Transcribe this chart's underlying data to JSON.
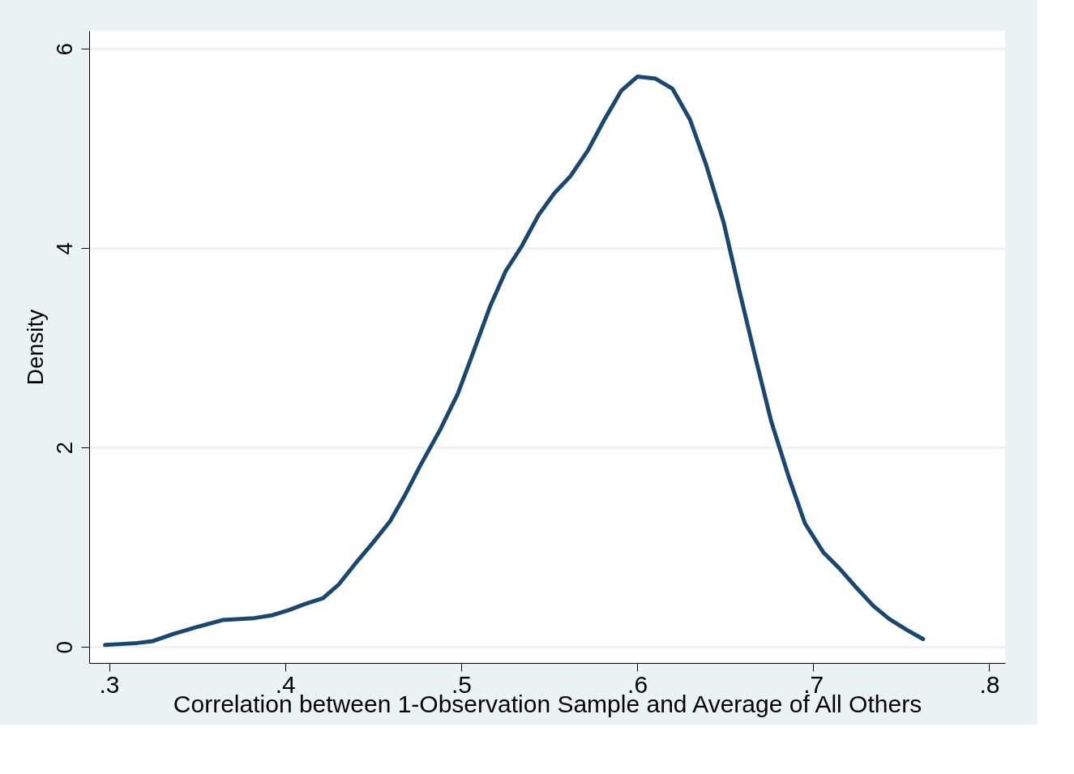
{
  "chart_data": {
    "type": "line",
    "xlabel": "Correlation between 1-Observation Sample and Average of All Others",
    "ylabel": "Density",
    "xlim": [
      0.2887,
      0.809
    ],
    "ylim": [
      -0.16,
      6.18
    ],
    "xticks": [
      {
        "value": 0.3,
        "label": ".3"
      },
      {
        "value": 0.4,
        "label": ".4"
      },
      {
        "value": 0.5,
        "label": ".5"
      },
      {
        "value": 0.6,
        "label": ".6"
      },
      {
        "value": 0.7,
        "label": ".7"
      },
      {
        "value": 0.8,
        "label": ".8"
      }
    ],
    "yticks": [
      0,
      2,
      4,
      6
    ],
    "grid": "y",
    "marker": "none",
    "line_style": "solid",
    "x": [
      0.2977,
      0.3068,
      0.3159,
      0.325,
      0.3363,
      0.3499,
      0.3644,
      0.3825,
      0.393,
      0.402,
      0.4111,
      0.4215,
      0.4306,
      0.4396,
      0.4496,
      0.4596,
      0.4677,
      0.4768,
      0.4881,
      0.4981,
      0.5072,
      0.5163,
      0.5253,
      0.5344,
      0.5439,
      0.5529,
      0.562,
      0.572,
      0.5811,
      0.591,
      0.6001,
      0.6105,
      0.62,
      0.63,
      0.6391,
      0.6491,
      0.6581,
      0.6672,
      0.6762,
      0.6862,
      0.6953,
      0.7057,
      0.7148,
      0.7248,
      0.7343,
      0.7433,
      0.7533,
      0.7624
    ],
    "series": [
      {
        "color": "#1a476f",
        "values": [
          0.02,
          0.03,
          0.04,
          0.06,
          0.13,
          0.2,
          0.27,
          0.29,
          0.32,
          0.37,
          0.43,
          0.49,
          0.63,
          0.83,
          1.04,
          1.26,
          1.51,
          1.82,
          2.18,
          2.54,
          2.97,
          3.41,
          3.77,
          4.02,
          4.33,
          4.55,
          4.72,
          4.98,
          5.28,
          5.58,
          5.72,
          5.7,
          5.6,
          5.29,
          4.84,
          4.26,
          3.57,
          2.9,
          2.26,
          1.7,
          1.24,
          0.95,
          0.79,
          0.59,
          0.41,
          0.28,
          0.17,
          0.08
        ]
      }
    ]
  }
}
